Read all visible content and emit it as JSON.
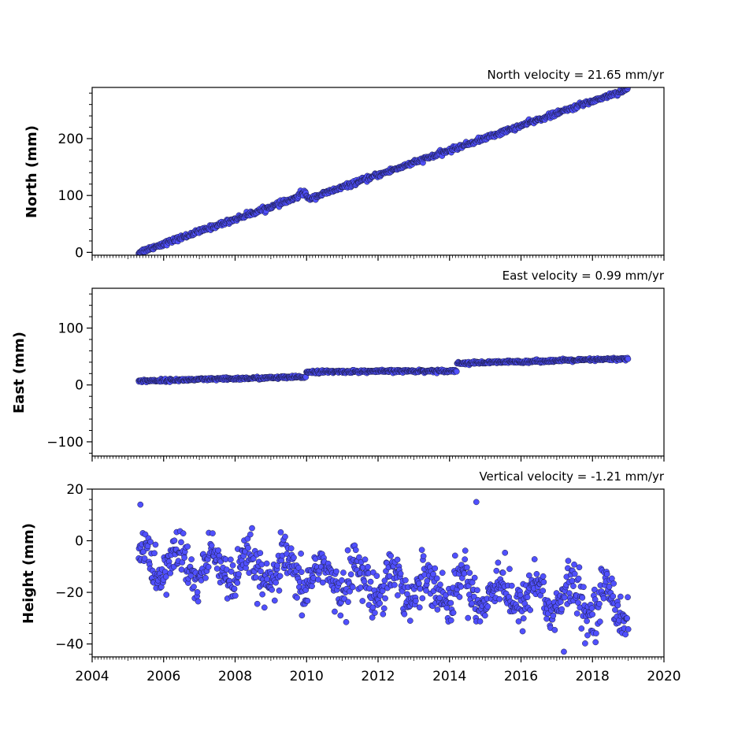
{
  "chart_data": [
    {
      "type": "scatter",
      "title": "North velocity = 21.65 mm/yr",
      "ylabel": "North (mm)",
      "xlabel": "",
      "xlim": [
        2004,
        2020
      ],
      "ylim": [
        -5,
        290
      ],
      "yticks": [
        0,
        100,
        200
      ],
      "ytick_labels": [
        "0",
        "100",
        "200"
      ],
      "grid": false,
      "marker_color": "#5050ff",
      "edge_color": "#1a1a40",
      "series": [
        {
          "x_range": [
            2005.3,
            2019.0
          ],
          "trend": {
            "rate": 21.65,
            "start": 0,
            "offsets": [
              {
                "at": 2009.98,
                "value": -9
              }
            ]
          },
          "scatter": 2
        }
      ]
    },
    {
      "type": "scatter",
      "title": "East velocity = 0.99 mm/yr",
      "ylabel": "East (mm)",
      "xlabel": "",
      "xlim": [
        2004,
        2020
      ],
      "ylim": [
        -125,
        170
      ],
      "yticks": [
        -100,
        0,
        100
      ],
      "ytick_labels": [
        "−100",
        "0",
        "100"
      ],
      "grid": false,
      "marker_color": "#5050ff",
      "edge_color": "#1a1a40",
      "series": [
        {
          "x_range": [
            2005.3,
            2019.0
          ],
          "steps": [
            {
              "from": 2005.3,
              "to": 2009.98,
              "start": 7,
              "end": 14
            },
            {
              "from": 2009.98,
              "to": 2014.2,
              "start": 23,
              "end": 25
            },
            {
              "from": 2014.2,
              "to": 2019.0,
              "start": 38,
              "end": 46
            }
          ],
          "scatter": 1.2
        }
      ]
    },
    {
      "type": "scatter",
      "title": "Vertical velocity = -1.21 mm/yr",
      "ylabel": "Height (mm)",
      "xlabel": "",
      "xlim": [
        2004,
        2020
      ],
      "ylim": [
        -45,
        20
      ],
      "yticks": [
        -40,
        -20,
        0,
        20
      ],
      "ytick_labels": [
        "−40",
        "−20",
        "0",
        "20"
      ],
      "xticks": [
        2004,
        2006,
        2008,
        2010,
        2012,
        2014,
        2016,
        2018,
        2020
      ],
      "xtick_labels": [
        "2004",
        "2006",
        "2008",
        "2010",
        "2012",
        "2014",
        "2016",
        "2018",
        "2020"
      ],
      "grid": false,
      "marker_color": "#5050ff",
      "edge_color": "#1a1a40",
      "series": [
        {
          "x_range": [
            2005.3,
            2019.0
          ],
          "trend": {
            "rate": -1.21,
            "start": -8
          },
          "seasonal_amplitude": 6,
          "scatter": 4.5,
          "outliers": [
            [
              2005.35,
              14
            ],
            [
              2014.75,
              15
            ],
            [
              2017.2,
              -43
            ]
          ]
        }
      ]
    }
  ]
}
